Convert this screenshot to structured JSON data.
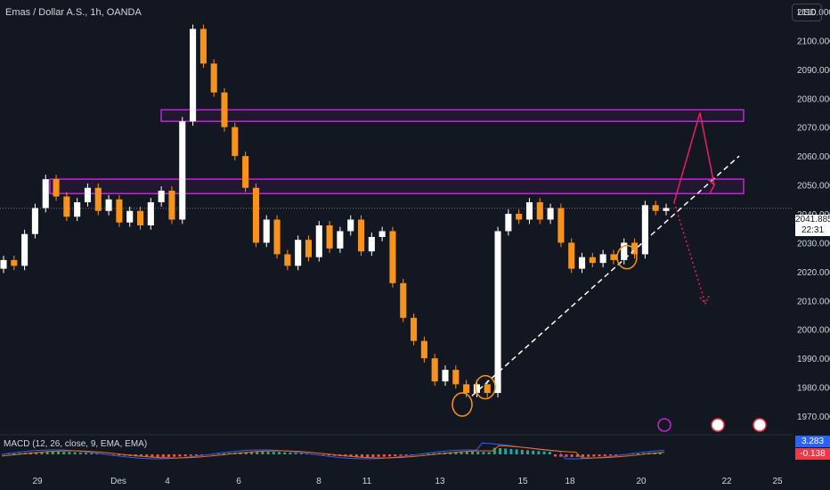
{
  "header": {
    "title": "Emas / Dollar A.S., 1h, OANDA",
    "currency_button": "USD"
  },
  "price_axis": {
    "ticks": [
      "2110.000",
      "2100.000",
      "2090.000",
      "2080.000",
      "2070.000",
      "2060.000",
      "2050.000",
      "2040.000",
      "2030.000",
      "2020.000",
      "2010.000",
      "2000.000",
      "1990.000",
      "1980.000",
      "1970.000"
    ]
  },
  "last_price": {
    "value": "2041.885",
    "countdown": "22:31"
  },
  "macd": {
    "label": "MACD (12, 26, close, 9, EMA, EMA)",
    "macd_value": "3.283",
    "signal_value": "-0.138"
  },
  "time_axis": {
    "ticks": [
      "29",
      "Des",
      "4",
      "6",
      "8",
      "11",
      "13",
      "15",
      "18",
      "20",
      "22",
      "25"
    ]
  },
  "colors": {
    "background": "#131722",
    "up": "#ffffff",
    "down": "#f7931a",
    "zone": "#c026d3",
    "projection": "#e91e63",
    "trendline": "#ffffff",
    "macd_line": "#2962ff",
    "signal_line": "#ff6d00"
  },
  "chart_data": {
    "type": "candlestick",
    "title": "Emas / Dollar A.S., 1h, OANDA",
    "ylim": [
      1966,
      2114
    ],
    "resistance_zones": [
      [
        2072,
        2076
      ],
      [
        2047,
        2052
      ]
    ],
    "projected_high": 2075,
    "projected_low": 2009,
    "trendline": {
      "from_price": 1977,
      "to_price": 2060
    },
    "series": [
      {
        "name": "price",
        "points": [
          [
            2021,
            2024
          ],
          [
            2024,
            2022
          ],
          [
            2022,
            2033
          ],
          [
            2033,
            2042
          ],
          [
            2042,
            2052
          ],
          [
            2052,
            2046
          ],
          [
            2046,
            2039
          ],
          [
            2039,
            2044
          ],
          [
            2044,
            2049
          ],
          [
            2049,
            2041
          ],
          [
            2041,
            2045
          ],
          [
            2045,
            2037
          ],
          [
            2037,
            2041
          ],
          [
            2041,
            2036
          ],
          [
            2036,
            2044
          ],
          [
            2044,
            2048
          ],
          [
            2048,
            2038
          ],
          [
            2038,
            2072
          ],
          [
            2072,
            2104
          ],
          [
            2104,
            2092
          ],
          [
            2092,
            2082
          ],
          [
            2082,
            2070
          ],
          [
            2070,
            2060
          ],
          [
            2060,
            2049
          ],
          [
            2049,
            2030
          ],
          [
            2030,
            2038
          ],
          [
            2038,
            2026
          ],
          [
            2026,
            2022
          ],
          [
            2022,
            2031
          ],
          [
            2031,
            2025
          ],
          [
            2025,
            2036
          ],
          [
            2036,
            2028
          ],
          [
            2028,
            2034
          ],
          [
            2034,
            2038
          ],
          [
            2038,
            2027
          ],
          [
            2027,
            2032
          ],
          [
            2032,
            2034
          ],
          [
            2034,
            2016
          ],
          [
            2016,
            2004
          ],
          [
            2004,
            1996
          ],
          [
            1996,
            1990
          ],
          [
            1990,
            1982
          ],
          [
            1982,
            1986
          ],
          [
            1986,
            1981
          ],
          [
            1981,
            1978
          ],
          [
            1978,
            1981
          ],
          [
            1981,
            1978
          ],
          [
            1978,
            2034
          ],
          [
            2034,
            2040
          ],
          [
            2040,
            2038
          ],
          [
            2038,
            2044
          ],
          [
            2044,
            2038
          ],
          [
            2038,
            2042
          ],
          [
            2042,
            2030
          ],
          [
            2030,
            2021
          ],
          [
            2021,
            2025
          ],
          [
            2025,
            2023
          ],
          [
            2023,
            2026
          ],
          [
            2026,
            2024
          ],
          [
            2024,
            2030
          ],
          [
            2030,
            2026
          ],
          [
            2026,
            2043
          ],
          [
            2043,
            2041
          ],
          [
            2041,
            2042
          ]
        ]
      }
    ]
  }
}
